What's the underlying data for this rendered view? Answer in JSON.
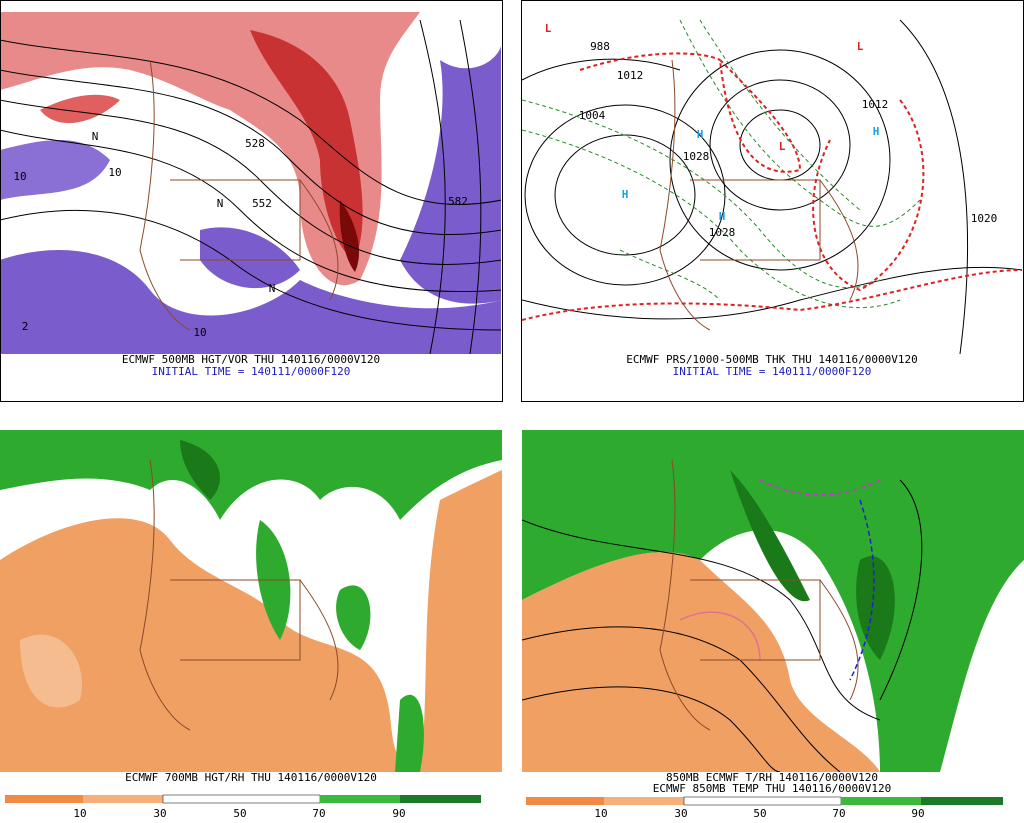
{
  "panels": [
    {
      "caption": "ECMWF 500MB HGT/VOR THU 140116/0000V120",
      "initial_time": "INITIAL TIME = 140111/0000F120",
      "map_labels": [
        "582",
        "552",
        "528",
        "10",
        "10",
        "N",
        "N",
        "N",
        "2",
        "10"
      ]
    },
    {
      "caption": "ECMWF PRS/1000-500MB THK THU 140116/0000V120",
      "initial_time": "INITIAL TIME = 140111/0000F120",
      "map_labels": [
        "L",
        "L",
        "L",
        "H",
        "H",
        "H",
        "H",
        "988",
        "1012",
        "1004",
        "1028",
        "1028",
        "1020",
        "1012"
      ]
    },
    {
      "caption": "ECMWF 700MB HGT/RH THU 140116/0000V120",
      "colorbar": [
        "10",
        "30",
        "50",
        "70",
        "90"
      ]
    },
    {
      "caption": "850MB ECMWF T/RH 140116/0000V120",
      "caption2": "ECMWF 850MB TEMP THU 140116/0000V120",
      "colorbar": [
        "10",
        "30",
        "50",
        "70",
        "90"
      ]
    }
  ]
}
